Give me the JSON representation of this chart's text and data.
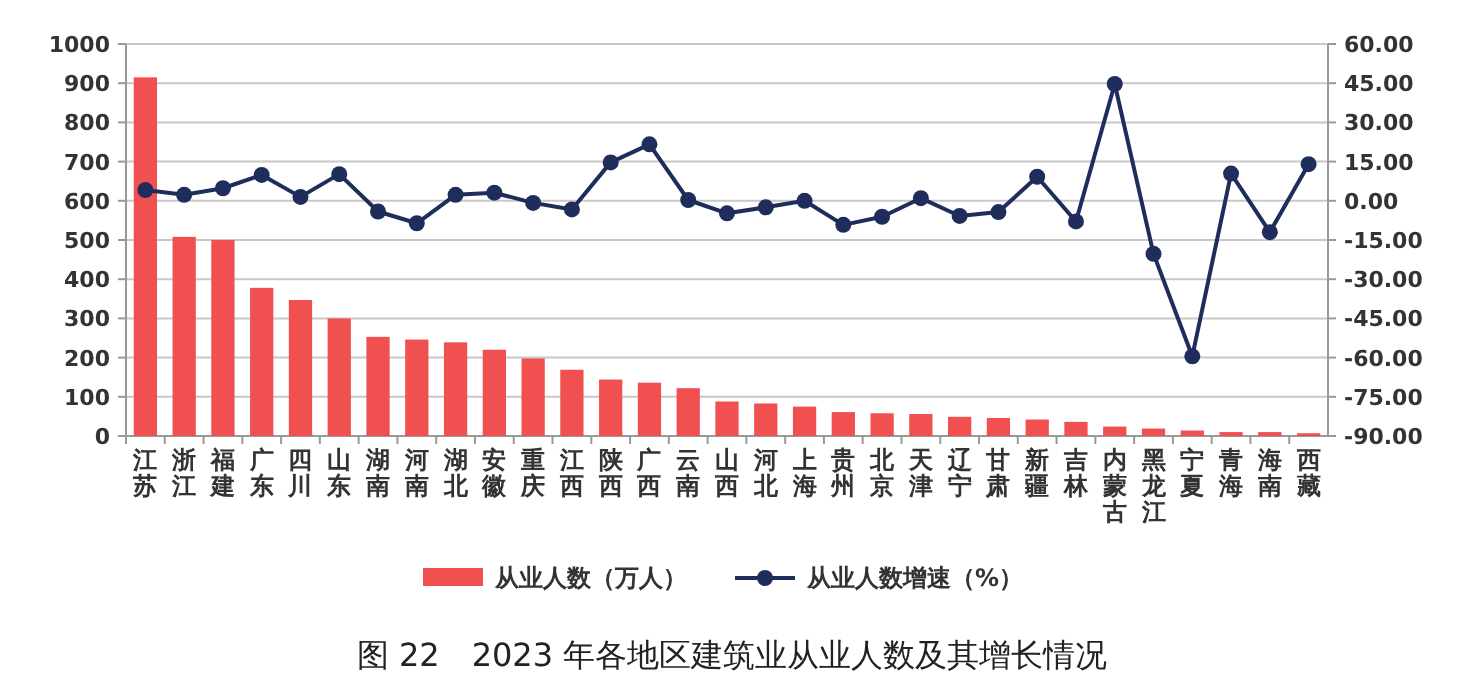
{
  "chart_data": {
    "type": "bar",
    "title": "图 22　2023 年各地区建筑业从业人数及其增长情况",
    "categories": [
      "江苏",
      "浙江",
      "福建",
      "广东",
      "四川",
      "山东",
      "湖南",
      "河南",
      "湖北",
      "安徽",
      "重庆",
      "江西",
      "陕西",
      "广西",
      "云南",
      "山西",
      "河北",
      "上海",
      "贵州",
      "北京",
      "天津",
      "辽宁",
      "甘肃",
      "新疆",
      "吉林",
      "内蒙古",
      "黑龙江",
      "宁夏",
      "青海",
      "海南",
      "西藏"
    ],
    "series": [
      {
        "name": "从业人数（万人）",
        "color": "#f05050",
        "values": [
          915,
          508,
          500,
          378,
          347,
          300,
          253,
          246,
          239,
          220,
          198,
          169,
          144,
          136,
          122,
          88,
          83,
          75,
          61,
          58,
          56,
          49,
          46,
          42,
          36,
          24,
          19,
          14,
          10,
          10,
          7
        ]
      },
      {
        "name": "从业人数增速（%）",
        "type": "line",
        "axis": "y2",
        "color": "#1f2d5c",
        "marker": "circle",
        "values": [
          4.1,
          2.3,
          4.8,
          9.9,
          1.5,
          10.2,
          -4.1,
          -8.6,
          2.3,
          3.1,
          -0.8,
          -3.3,
          14.7,
          21.6,
          0.3,
          -4.8,
          -2.5,
          0,
          -9.2,
          -6.1,
          1.0,
          -5.8,
          -4.3,
          9.2,
          -7.9,
          44.7,
          -20.3,
          -59.5,
          10.4,
          -12.0,
          14.0
        ]
      }
    ],
    "ylim": [
      0,
      1000
    ],
    "yticks": [
      0,
      100,
      200,
      300,
      400,
      500,
      600,
      700,
      800,
      900,
      1000
    ],
    "y2lim": [
      -90,
      60
    ],
    "y2ticks": [
      {
        "value": -90,
        "label": "-90.00"
      },
      {
        "value": -75,
        "label": "-75.00"
      },
      {
        "value": -60,
        "label": "-60.00"
      },
      {
        "value": -45,
        "label": "-45.00"
      },
      {
        "value": -30,
        "label": "-30.00"
      },
      {
        "value": -15,
        "label": "-15.00"
      },
      {
        "value": 0,
        "label": "0.00"
      },
      {
        "value": 15,
        "label": "15.00"
      },
      {
        "value": 30,
        "label": "30.00"
      },
      {
        "value": 45,
        "label": "45.00"
      },
      {
        "value": 60,
        "label": "60.00"
      }
    ],
    "grid": "y",
    "legend": "bottom"
  }
}
